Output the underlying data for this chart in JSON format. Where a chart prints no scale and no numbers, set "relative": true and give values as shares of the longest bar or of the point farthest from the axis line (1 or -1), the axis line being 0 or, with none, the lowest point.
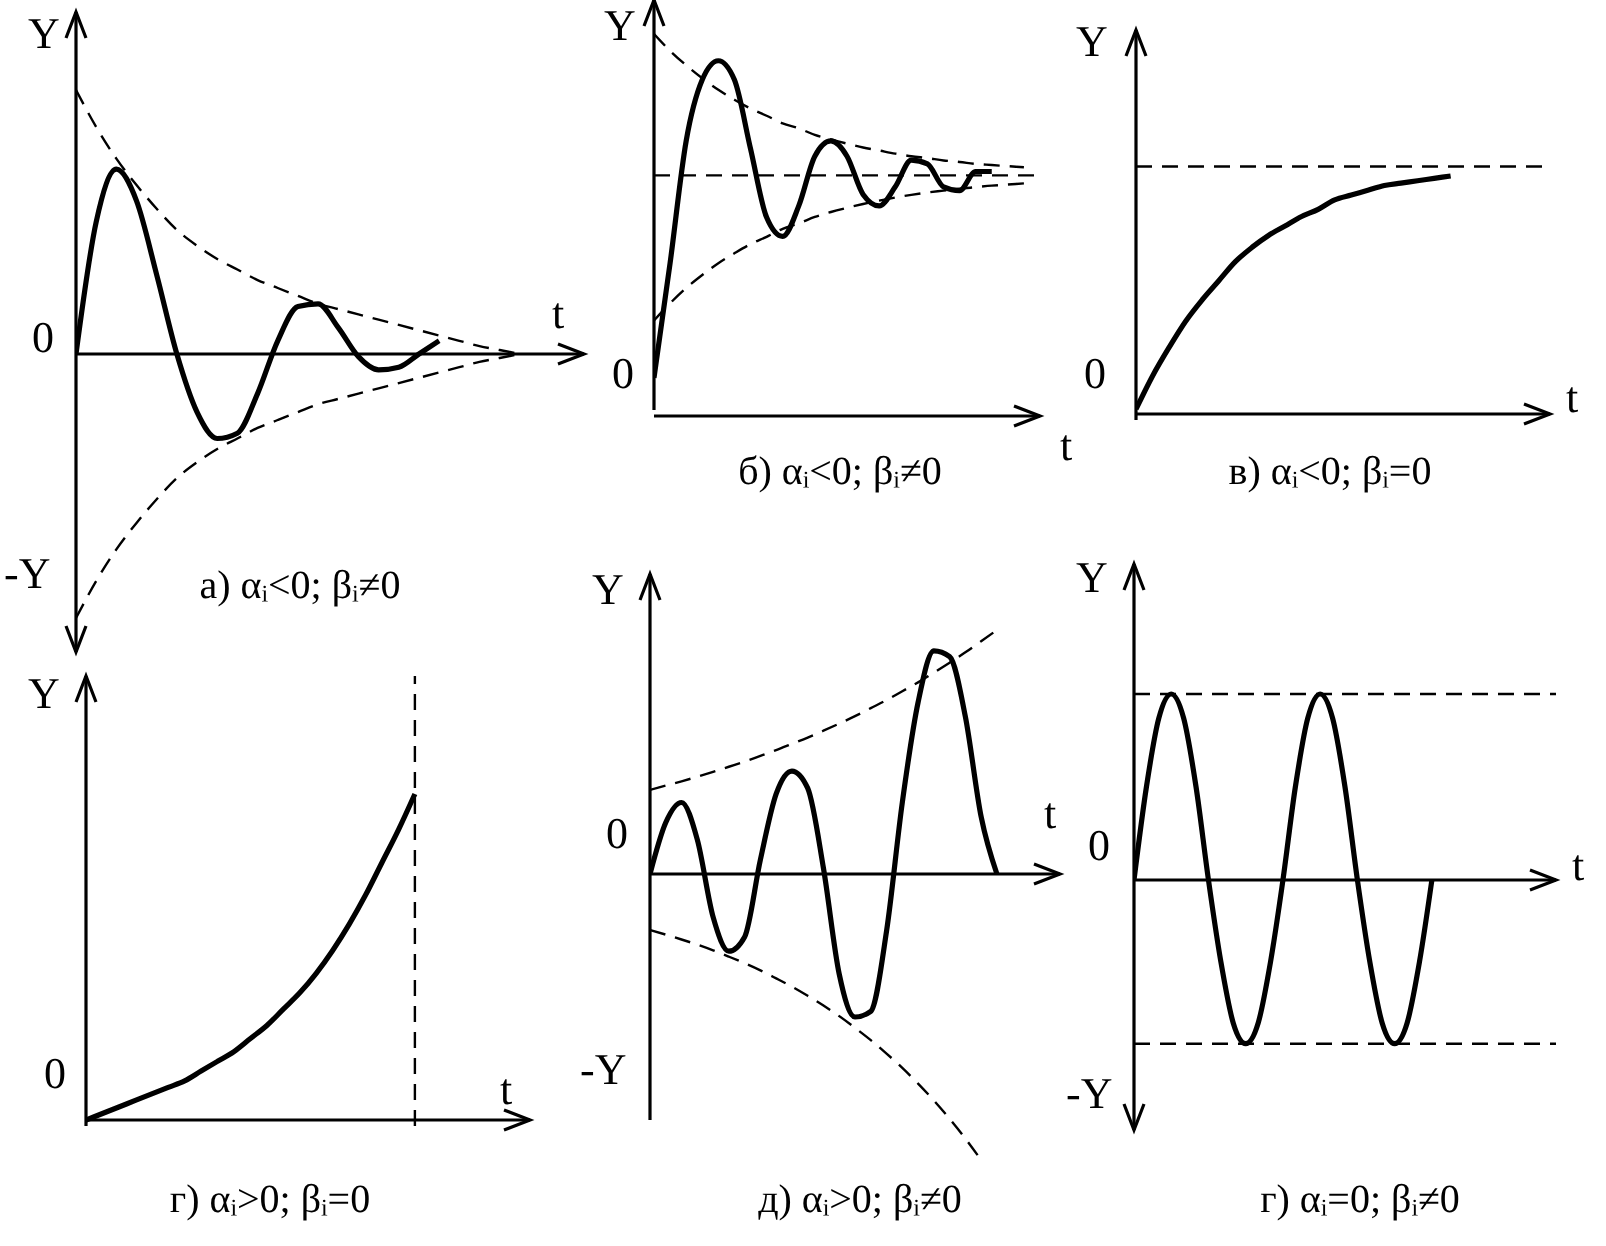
{
  "chart_data": [
    {
      "type": "line",
      "relative": true,
      "title": "а) αᵢ<0; βᵢ≠0",
      "ylabel": "Y",
      "xlabel": "t",
      "annotations": [
        "0",
        "-Y"
      ],
      "marker": "none",
      "categories": [
        null,
        null,
        null,
        null,
        null,
        null,
        null,
        null,
        null,
        null,
        null,
        null,
        null,
        null,
        null,
        null,
        null,
        null,
        null,
        null,
        null,
        null,
        null,
        null
      ],
      "series": [
        {
          "color": "#000000",
          "line_style": "solid",
          "values": [
            0,
            0.5,
            0.7,
            0.58,
            0.3,
            0,
            -0.22,
            -0.32,
            -0.3,
            -0.15,
            0.05,
            0.18,
            0.19,
            0.1,
            -0.01,
            -0.06,
            -0.05,
            0,
            0.05,
            null,
            null,
            null,
            null,
            null
          ]
        },
        {
          "color": "#000000",
          "line_style": "dashed",
          "values": [
            1,
            0.86,
            0.74,
            0.64,
            0.55,
            0.47,
            0.41,
            0.36,
            0.32,
            0.28,
            0.25,
            0.22,
            0.19,
            0.17,
            0.15,
            0.13,
            0.11,
            0.09,
            0.07,
            0.05,
            0.03,
            0.015,
            0,
            null
          ]
        },
        {
          "color": "#000000",
          "line_style": "dashed",
          "values": [
            -1,
            -0.86,
            -0.74,
            -0.64,
            -0.55,
            -0.47,
            -0.41,
            -0.36,
            -0.32,
            -0.28,
            -0.25,
            -0.22,
            -0.19,
            -0.17,
            -0.15,
            -0.13,
            -0.11,
            -0.09,
            -0.07,
            -0.05,
            -0.03,
            -0.015,
            0,
            null
          ]
        }
      ]
    },
    {
      "type": "line",
      "relative": true,
      "title": "б) αᵢ<0; βᵢ≠0",
      "ylabel": "Y",
      "xlabel": "t",
      "annotations": [
        "0"
      ],
      "marker": "none",
      "categories": [
        null,
        null,
        null,
        null,
        null,
        null,
        null,
        null,
        null,
        null,
        null,
        null,
        null,
        null,
        null,
        null,
        null,
        null,
        null,
        null,
        null,
        null,
        null,
        null,
        null
      ],
      "series": [
        {
          "color": "#000000",
          "line_style": "solid",
          "values": [
            0.1,
            0.4,
            0.72,
            0.88,
            0.93,
            0.88,
            0.7,
            0.52,
            0.47,
            0.55,
            0.68,
            0.72,
            0.68,
            0.58,
            0.55,
            0.6,
            0.67,
            0.66,
            0.6,
            0.59,
            0.64,
            0.64,
            null,
            null,
            null
          ]
        },
        {
          "color": "#000000",
          "line_style": "dashed",
          "values": [
            1,
            0.956,
            0.918,
            0.884,
            0.854,
            0.828,
            0.805,
            0.786,
            0.766,
            0.753,
            0.736,
            0.724,
            0.713,
            0.703,
            0.695,
            0.687,
            0.68,
            0.675,
            0.669,
            0.665,
            0.66,
            0.657,
            0.654,
            0.651,
            null
          ]
        },
        {
          "color": "#000000",
          "line_style": "dashed",
          "values": [
            0.25,
            0.295,
            0.335,
            0.369,
            0.4,
            0.426,
            0.45,
            0.469,
            0.49,
            0.504,
            0.521,
            0.534,
            0.545,
            0.555,
            0.564,
            0.572,
            0.579,
            0.585,
            0.59,
            0.595,
            0.599,
            0.603,
            0.606,
            0.609,
            null
          ]
        }
      ],
      "ref_lines": [
        {
          "axis": "y",
          "value": 0.63,
          "color": "#000000",
          "line_style": "dashed"
        }
      ]
    },
    {
      "type": "line",
      "relative": true,
      "title": "в) αᵢ<0; βᵢ=0",
      "ylabel": "Y",
      "xlabel": "t",
      "annotations": [
        "0"
      ],
      "marker": "none",
      "categories": [
        null,
        null,
        null,
        null,
        null,
        null,
        null,
        null,
        null,
        null,
        null,
        null,
        null,
        null,
        null,
        null,
        null,
        null,
        null,
        null,
        null,
        null,
        null,
        null,
        null,
        null
      ],
      "series": [
        {
          "color": "#000000",
          "line_style": "solid",
          "values": [
            0.02,
            0.16,
            0.28,
            0.39,
            0.48,
            0.56,
            0.64,
            0.7,
            0.75,
            0.79,
            0.83,
            0.86,
            0.9,
            0.92,
            0.94,
            0.96,
            0.97,
            0.98,
            0.99,
            1,
            null,
            null,
            null,
            null,
            null,
            null
          ]
        }
      ],
      "ref_lines": [
        {
          "axis": "y",
          "value": 1.04,
          "color": "#000000",
          "line_style": "dashed"
        }
      ]
    },
    {
      "type": "line",
      "relative": true,
      "title": "г) αᵢ>0; βᵢ=0",
      "ylabel": "Y",
      "xlabel": "t",
      "annotations": [
        "0"
      ],
      "marker": "none",
      "categories": [
        null,
        null,
        null,
        null,
        null,
        null,
        null,
        null,
        null,
        null,
        null,
        null,
        null,
        null,
        null,
        null,
        null,
        null,
        null,
        null,
        null,
        null,
        null,
        null,
        null,
        null,
        null,
        null
      ],
      "series": [
        {
          "color": "#000000",
          "line_style": "solid",
          "values": [
            0,
            0.02,
            0.04,
            0.06,
            0.08,
            0.1,
            0.12,
            0.15,
            0.18,
            0.21,
            0.25,
            0.29,
            0.34,
            0.39,
            0.45,
            0.52,
            0.6,
            0.69,
            0.79,
            0.89,
            1,
            null,
            null,
            null,
            null,
            null,
            null,
            null
          ]
        }
      ]
    },
    {
      "type": "line",
      "relative": true,
      "title": "д) αᵢ>0; βᵢ≠0",
      "ylabel": "Y",
      "xlabel": "t",
      "annotations": [
        "0",
        "-Y"
      ],
      "marker": "none",
      "categories": [
        null,
        null,
        null,
        null,
        null,
        null,
        null,
        null,
        null,
        null,
        null,
        null,
        null,
        null,
        null,
        null,
        null,
        null,
        null,
        null,
        null,
        null,
        null,
        null,
        null,
        null,
        null
      ],
      "series": [
        {
          "color": "#000000",
          "line_style": "solid",
          "values": [
            0,
            0.18,
            0.25,
            0.12,
            -0.15,
            -0.27,
            -0.22,
            0.05,
            0.28,
            0.36,
            0.3,
            0.02,
            -0.35,
            -0.5,
            -0.48,
            -0.2,
            0.25,
            0.6,
            0.78,
            0.76,
            0.55,
            0.2,
            0,
            null,
            null,
            null,
            null
          ]
        },
        {
          "color": "#000000",
          "line_style": "dashed",
          "values": [
            0.294,
            0.309,
            0.324,
            0.34,
            0.357,
            0.375,
            0.393,
            0.413,
            0.433,
            0.455,
            0.477,
            0.501,
            0.526,
            0.552,
            0.58,
            0.608,
            0.639,
            0.67,
            0.704,
            0.739,
            0.775,
            0.814,
            0.853,
            null,
            null,
            null,
            null
          ]
        },
        {
          "color": "#000000",
          "line_style": "dashed",
          "values": [
            -0.196,
            -0.212,
            -0.229,
            -0.247,
            -0.267,
            -0.289,
            -0.312,
            -0.337,
            -0.365,
            -0.394,
            -0.426,
            -0.46,
            -0.497,
            -0.538,
            -0.581,
            -0.628,
            -0.678,
            -0.733,
            -0.792,
            -0.856,
            -0.925,
            -1,
            null,
            null,
            null,
            null,
            null
          ]
        }
      ]
    },
    {
      "type": "line",
      "relative": true,
      "title": "г) αᵢ=0; βᵢ≠0",
      "ylabel": "Y",
      "xlabel": "t",
      "annotations": [
        "0",
        "-Y"
      ],
      "marker": "none",
      "categories": [
        null,
        null,
        null,
        null,
        null,
        null,
        null,
        null,
        null,
        null,
        null,
        null,
        null,
        null,
        null,
        null,
        null,
        null,
        null,
        null,
        null,
        null,
        null,
        null,
        null,
        null,
        null,
        null,
        null,
        null,
        null,
        null,
        null,
        null,
        null
      ],
      "series": [
        {
          "color": "#000000",
          "line_style": "solid",
          "values": [
            0,
            0.5,
            0.87,
            1,
            0.87,
            0.5,
            0,
            -0.44,
            -0.77,
            -0.88,
            -0.77,
            -0.44,
            0,
            0.5,
            0.87,
            1,
            0.87,
            0.5,
            0,
            -0.44,
            -0.77,
            -0.88,
            -0.77,
            -0.44,
            0,
            null,
            null,
            null,
            null,
            null,
            null,
            null,
            null,
            null,
            null
          ]
        }
      ],
      "ref_lines": [
        {
          "axis": "y",
          "value": 1,
          "color": "#000000",
          "line_style": "dashed"
        },
        {
          "axis": "y",
          "value": -0.88,
          "color": "#000000",
          "line_style": "dashed"
        }
      ]
    }
  ]
}
